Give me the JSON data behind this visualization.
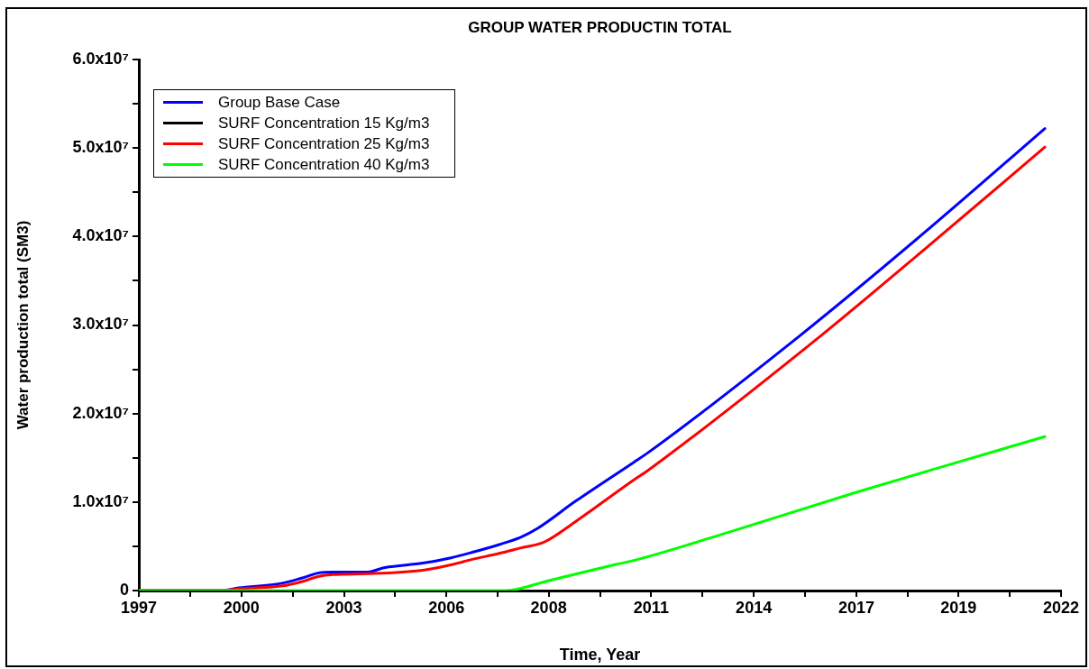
{
  "chart_data": {
    "type": "line",
    "title": "GROUP WATER PRODUCTIN TOTAL",
    "xlabel": "Time, Year",
    "ylabel": "Water production total (SM3)",
    "xlim": [
      1997.22,
      2022.22
    ],
    "xticks": [
      {
        "value": 1997.22,
        "label": "1997"
      },
      {
        "value": 1998.61,
        "label": null
      },
      {
        "value": 2000.0,
        "label": "2000"
      },
      {
        "value": 2001.39,
        "label": null
      },
      {
        "value": 2002.78,
        "label": "2003"
      },
      {
        "value": 2004.17,
        "label": null
      },
      {
        "value": 2005.56,
        "label": "2006"
      },
      {
        "value": 2006.94,
        "label": null
      },
      {
        "value": 2008.33,
        "label": "2008"
      },
      {
        "value": 2009.72,
        "label": null
      },
      {
        "value": 2011.11,
        "label": "2011"
      },
      {
        "value": 2012.5,
        "label": null
      },
      {
        "value": 2013.89,
        "label": "2014"
      },
      {
        "value": 2015.28,
        "label": null
      },
      {
        "value": 2016.67,
        "label": "2017"
      },
      {
        "value": 2018.06,
        "label": null
      },
      {
        "value": 2019.44,
        "label": "2019"
      },
      {
        "value": 2020.83,
        "label": null
      },
      {
        "value": 2022.22,
        "label": "2022"
      }
    ],
    "ylim": [
      0,
      60000000
    ],
    "yticks": [
      0,
      {
        "value": 5000000,
        "label": null
      },
      {
        "value": 10000000,
        "label": "1.0x10⁷"
      },
      {
        "value": 15000000,
        "label": null
      },
      {
        "value": 20000000,
        "label": "2.0x10⁷"
      },
      {
        "value": 25000000,
        "label": null
      },
      {
        "value": 30000000,
        "label": "3.0x10⁷"
      },
      {
        "value": 35000000,
        "label": null
      },
      {
        "value": 40000000,
        "label": "4.0x10⁷"
      },
      {
        "value": 45000000,
        "label": null
      },
      {
        "value": 50000000,
        "label": "5.0x10⁷"
      },
      {
        "value": 55000000,
        "label": null
      },
      {
        "value": 60000000,
        "label": "6.0x10⁷"
      }
    ],
    "grid": false,
    "legend": "top left",
    "marker": "none",
    "line_style": "solid",
    "series": [
      {
        "name": "Group Base Case",
        "color": "#0000ff",
        "x": [
          1997.22,
          1999.47,
          1999.92,
          2001.07,
          2001.63,
          2002.1,
          2002.48,
          2003.42,
          2003.89,
          2004.92,
          2005.68,
          2006.24,
          2006.99,
          2007.56,
          2008.02,
          2009.06,
          2010.64,
          2011.03,
          2015.17,
          2018.56,
          2021.78
        ],
        "values": [
          0,
          0,
          300000,
          800000,
          1400000,
          2000000,
          2100000,
          2100000,
          2600000,
          3100000,
          3700000,
          4300000,
          5200000,
          6000000,
          7000000,
          10100000,
          14500000,
          15600000,
          28900000,
          40600000,
          52200000
        ]
      },
      {
        "name": "SURF Concentration 15 Kg/m3",
        "color": "#000000"
      },
      {
        "name": "SURF Concentration 25 Kg/m3",
        "color": "#ff0000",
        "x": [
          1997.22,
          1999.47,
          1999.92,
          2001.07,
          2001.63,
          2002.1,
          2002.48,
          2003.42,
          2004.92,
          2005.68,
          2006.24,
          2006.99,
          2007.56,
          2008.22,
          2009.06,
          2010.64,
          2011.03,
          2015.74,
          2018.56,
          2021.78
        ],
        "values": [
          0,
          0,
          200000,
          500000,
          1000000,
          1600000,
          1800000,
          1900000,
          2300000,
          2900000,
          3500000,
          4200000,
          4800000,
          5500000,
          7800000,
          12500000,
          13600000,
          28900000,
          38700000,
          50100000
        ]
      },
      {
        "name": "SURF Concentration 40 Kg/m3",
        "color": "#00ff00",
        "x": [
          1997.22,
          2007.18,
          2008.31,
          2010.1,
          2010.64,
          2012.91,
          2016.67,
          2019.5,
          2021.78
        ],
        "values": [
          0,
          0,
          1100000,
          2900000,
          3400000,
          6200000,
          11100000,
          14600000,
          17400000
        ]
      }
    ]
  }
}
